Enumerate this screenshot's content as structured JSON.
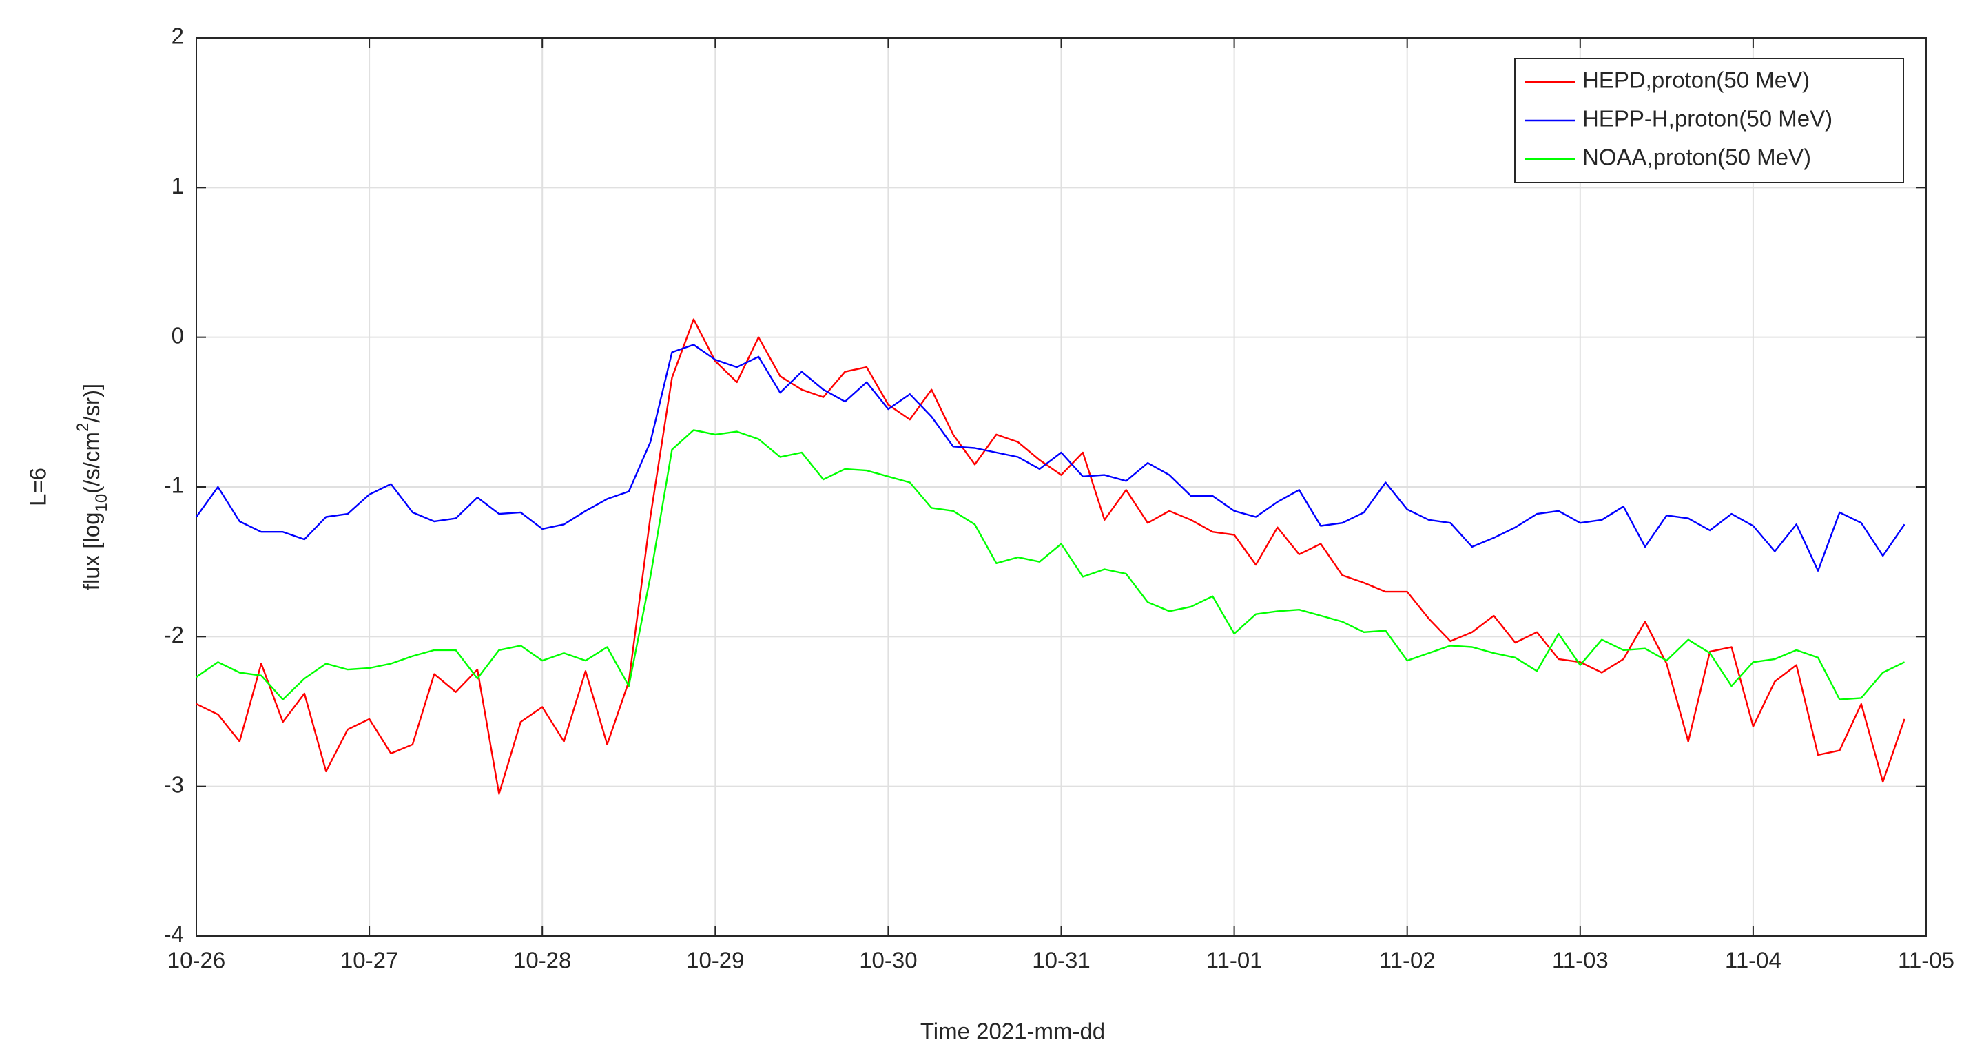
{
  "chart_data": {
    "type": "line",
    "xlabel": "Time 2021-mm-dd",
    "ylabel_title": "L=6",
    "ylabel_parts": [
      "flux [log",
      "10",
      "(/s/cm",
      "2",
      "/sr)]"
    ],
    "x": [
      0,
      0.125,
      0.25,
      0.375,
      0.5,
      0.625,
      0.75,
      0.875,
      1,
      1.125,
      1.25,
      1.375,
      1.5,
      1.625,
      1.75,
      1.875,
      2,
      2.125,
      2.25,
      2.375,
      2.5,
      2.625,
      2.75,
      2.875,
      3,
      3.125,
      3.25,
      3.375,
      3.5,
      3.625,
      3.75,
      3.875,
      4,
      4.125,
      4.25,
      4.375,
      4.5,
      4.625,
      4.75,
      4.875,
      5,
      5.125,
      5.25,
      5.375,
      5.5,
      5.625,
      5.75,
      5.875,
      6,
      6.125,
      6.25,
      6.375,
      6.5,
      6.625,
      6.75,
      6.875,
      7,
      7.125,
      7.25,
      7.375,
      7.5,
      7.625,
      7.75,
      7.875,
      8,
      8.125,
      8.25,
      8.375,
      8.5,
      8.625,
      8.75,
      8.875,
      9,
      9.125,
      9.25,
      9.375,
      9.5,
      9.625,
      9.75,
      9.875
    ],
    "series": [
      {
        "name": "HEPD,proton(50 MeV)",
        "color": "#ff0000",
        "values": [
          -2.45,
          -2.52,
          -2.7,
          -2.18,
          -2.57,
          -2.38,
          -2.9,
          -2.62,
          -2.55,
          -2.78,
          -2.72,
          -2.25,
          -2.37,
          -2.22,
          -3.05,
          -2.57,
          -2.47,
          -2.7,
          -2.23,
          -2.72,
          -2.3,
          -1.2,
          -0.27,
          0.12,
          -0.16,
          -0.3,
          0.0,
          -0.26,
          -0.35,
          -0.4,
          -0.23,
          -0.2,
          -0.45,
          -0.55,
          -0.35,
          -0.65,
          -0.85,
          -0.65,
          -0.7,
          -0.82,
          -0.92,
          -0.77,
          -1.22,
          -1.02,
          -1.24,
          -1.16,
          -1.22,
          -1.3,
          -1.32,
          -1.52,
          -1.27,
          -1.45,
          -1.38,
          -1.59,
          -1.64,
          -1.7,
          -1.7,
          -1.88,
          -2.03,
          -1.97,
          -1.86,
          -2.04,
          -1.97,
          -2.15,
          -2.17,
          -2.24,
          -2.15,
          -1.9,
          -2.18,
          -2.7,
          -2.1,
          -2.07,
          -2.6,
          -2.3,
          -2.19,
          -2.79,
          -2.76,
          -2.45,
          -2.97,
          -2.55
        ]
      },
      {
        "name": "HEPP-H,proton(50 MeV)",
        "color": "#0000ff",
        "values": [
          -1.2,
          -1.0,
          -1.23,
          -1.3,
          -1.3,
          -1.35,
          -1.2,
          -1.18,
          -1.05,
          -0.98,
          -1.17,
          -1.23,
          -1.21,
          -1.07,
          -1.18,
          -1.17,
          -1.28,
          -1.25,
          -1.16,
          -1.08,
          -1.03,
          -0.7,
          -0.1,
          -0.05,
          -0.15,
          -0.2,
          -0.13,
          -0.37,
          -0.23,
          -0.35,
          -0.43,
          -0.3,
          -0.48,
          -0.38,
          -0.53,
          -0.73,
          -0.74,
          -0.77,
          -0.8,
          -0.88,
          -0.77,
          -0.93,
          -0.92,
          -0.96,
          -0.84,
          -0.92,
          -1.06,
          -1.06,
          -1.16,
          -1.2,
          -1.1,
          -1.02,
          -1.26,
          -1.24,
          -1.17,
          -0.97,
          -1.15,
          -1.22,
          -1.24,
          -1.4,
          -1.34,
          -1.27,
          -1.18,
          -1.16,
          -1.24,
          -1.22,
          -1.13,
          -1.4,
          -1.19,
          -1.21,
          -1.29,
          -1.18,
          -1.26,
          -1.43,
          -1.25,
          -1.56,
          -1.17,
          -1.24,
          -1.46,
          -1.25
        ]
      },
      {
        "name": "NOAA,proton(50 MeV)",
        "color": "#00ff00",
        "values": [
          -2.27,
          -2.17,
          -2.24,
          -2.26,
          -2.42,
          -2.28,
          -2.18,
          -2.22,
          -2.21,
          -2.18,
          -2.13,
          -2.09,
          -2.09,
          -2.28,
          -2.09,
          -2.06,
          -2.16,
          -2.11,
          -2.16,
          -2.07,
          -2.33,
          -1.6,
          -0.75,
          -0.62,
          -0.65,
          -0.63,
          -0.68,
          -0.8,
          -0.77,
          -0.95,
          -0.88,
          -0.89,
          -0.93,
          -0.97,
          -1.14,
          -1.16,
          -1.25,
          -1.51,
          -1.47,
          -1.5,
          -1.38,
          -1.6,
          -1.55,
          -1.58,
          -1.77,
          -1.83,
          -1.8,
          -1.73,
          -1.98,
          -1.85,
          -1.83,
          -1.82,
          -1.86,
          -1.9,
          -1.97,
          -1.96,
          -2.16,
          -2.11,
          -2.06,
          -2.07,
          -2.11,
          -2.14,
          -2.23,
          -1.98,
          -2.19,
          -2.02,
          -2.09,
          -2.08,
          -2.16,
          -2.02,
          -2.11,
          -2.33,
          -2.17,
          -2.15,
          -2.09,
          -2.14,
          -2.42,
          -2.41,
          -2.24,
          -2.17
        ]
      }
    ],
    "xlim": [
      0,
      10
    ],
    "xticks": [
      {
        "value": 0,
        "label": "10-26"
      },
      {
        "value": 1,
        "label": "10-27"
      },
      {
        "value": 2,
        "label": "10-28"
      },
      {
        "value": 3,
        "label": "10-29"
      },
      {
        "value": 4,
        "label": "10-30"
      },
      {
        "value": 5,
        "label": "10-31"
      },
      {
        "value": 6,
        "label": "11-01"
      },
      {
        "value": 7,
        "label": "11-02"
      },
      {
        "value": 8,
        "label": "11-03"
      },
      {
        "value": 9,
        "label": "11-04"
      },
      {
        "value": 10,
        "label": "11-05"
      }
    ],
    "ylim": [
      -4,
      2
    ],
    "yticks": [
      -4,
      -3,
      -2,
      -1,
      0,
      1,
      2
    ],
    "grid": true,
    "legend": "upper right"
  }
}
